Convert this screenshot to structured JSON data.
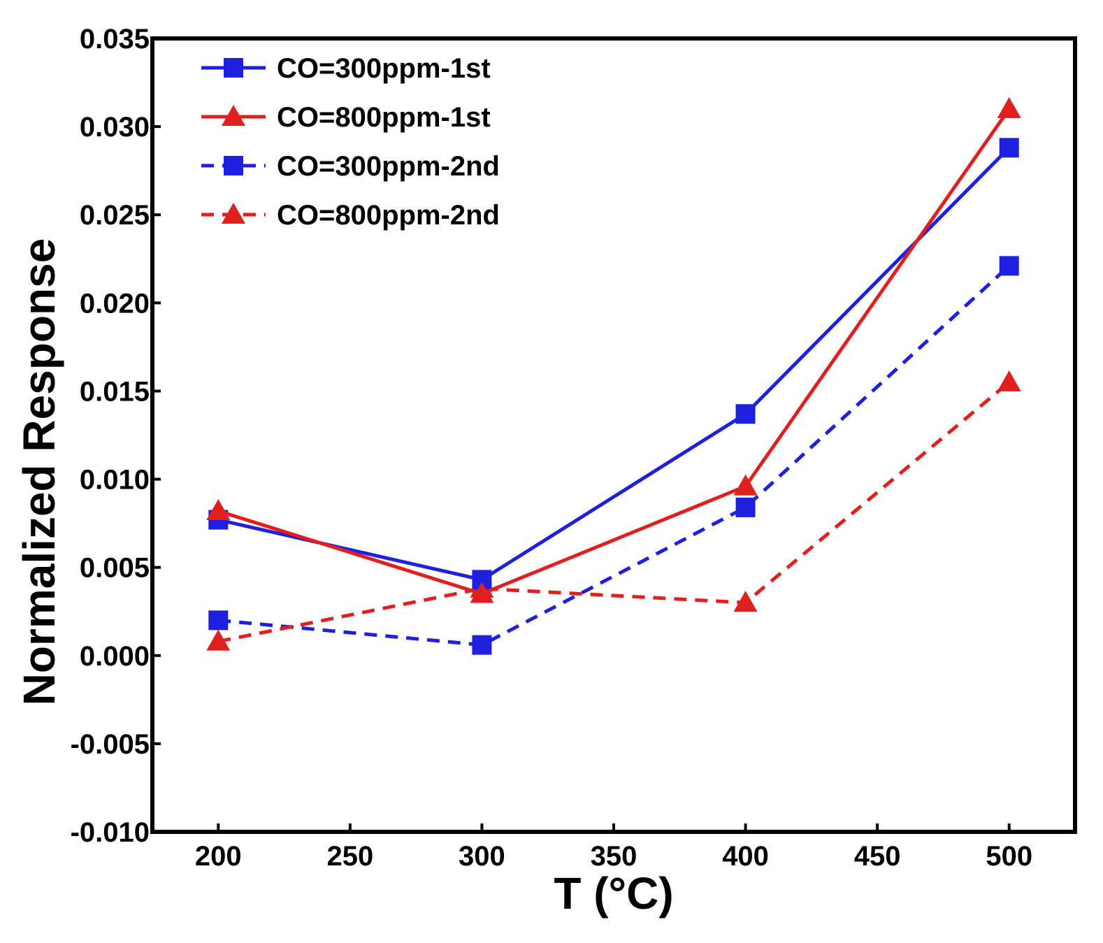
{
  "chart_data": {
    "type": "line",
    "title": "",
    "xlabel": "T (°C)",
    "ylabel": "Normalized Response",
    "xlim": [
      175,
      525
    ],
    "ylim": [
      -0.01,
      0.035
    ],
    "xticks": [
      200,
      250,
      300,
      350,
      400,
      450,
      500
    ],
    "xtick_labels": [
      "200",
      "250",
      "300",
      "350",
      "400",
      "450",
      "500"
    ],
    "yticks": [
      -0.01,
      -0.005,
      0.0,
      0.005,
      0.01,
      0.015,
      0.02,
      0.025,
      0.03,
      0.035
    ],
    "ytick_labels": [
      "-0.010",
      "-0.005",
      "0.000",
      "0.005",
      "0.010",
      "0.015",
      "0.020",
      "0.025",
      "0.030",
      "0.035"
    ],
    "grid": false,
    "legend_position": "top-left",
    "x": [
      200,
      300,
      400,
      500
    ],
    "series": [
      {
        "name": "CO=300ppm-1st",
        "values": [
          0.0077,
          0.0043,
          0.0137,
          0.0288
        ],
        "color": "#1f1fe0",
        "marker": "square",
        "line": "solid"
      },
      {
        "name": "CO=800ppm-1st",
        "values": [
          0.0082,
          0.0035,
          0.0096,
          0.031
        ],
        "color": "#e01f1f",
        "marker": "triangle",
        "line": "solid"
      },
      {
        "name": "CO=300ppm-2nd",
        "values": [
          0.002,
          0.0006,
          0.0084,
          0.0221
        ],
        "color": "#1f1fe0",
        "marker": "square",
        "line": "dashed"
      },
      {
        "name": "CO=800ppm-2nd",
        "values": [
          0.0008,
          0.0038,
          0.003,
          0.0155
        ],
        "color": "#e01f1f",
        "marker": "triangle",
        "line": "dashed"
      }
    ]
  }
}
